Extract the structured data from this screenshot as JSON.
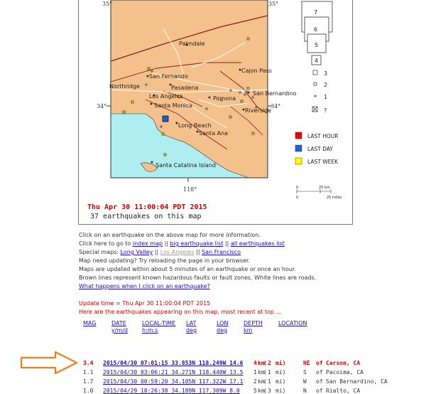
{
  "map": {
    "lat_top_left": "35°",
    "lat_top_right": "35°",
    "lat_mid_left": "34°",
    "lat_mid_right": "34°",
    "lon_bottom": "118°",
    "places": [
      "Palmdale",
      "San Fernando",
      "Northridge",
      "Pasadena",
      "Cajon Pass",
      "Los Angeles",
      "Pomona",
      "San Bernardino",
      "Santa Monica",
      "Riverside",
      "Long Beach",
      "Santa Ana",
      "Santa Catalina Island"
    ],
    "colors": {
      "land": "#f4c08c",
      "water": "#aeeef0",
      "fault": "#8b1a1a",
      "road": "#ffffff"
    }
  },
  "legend": {
    "boxes": [
      "7",
      "6",
      "5",
      "4"
    ],
    "mags": [
      "3",
      "2",
      "1",
      "?"
    ],
    "last_hour": "LAST HOUR",
    "last_day": "LAST DAY",
    "last_week": "LAST WEEK",
    "scale_km_0": "0",
    "scale_km_25": "25 km",
    "scale_mi_0": "0",
    "scale_mi_25": "25 miles"
  },
  "caption": {
    "time": "Thu Apr 30 11:00:04 PDT 2015",
    "count": "37 earthquakes on this map"
  },
  "info": {
    "line1": "Click on an earthquake on the above map for more information.",
    "line2_pre": "Click here to go to ",
    "index_map": "index map",
    "sep1": " || ",
    "big_list": "big earthquake list",
    "sep2": " || ",
    "all_list": "all earthquakes list",
    "special_pre": "Special maps: ",
    "long_valley": "Long Valley",
    "sep3": " || ",
    "los_angeles": "Los Angeles",
    "sep4": " || ",
    "san_francisco": "San Francisco",
    "line4": "Map need updating? Try reloading the page in your browser.",
    "line5": "Maps are updated within about 5 minutes of an earthquake or once an hour.",
    "line6": "Brown lines represent known hazardous faults or fault zones. White lines are roads.",
    "what_happens": "What happens when I click on an earthquake?",
    "update_time": "Update time = Thu Apr 30 11:00:04 PDT 2015",
    "here_are": "Here are the earthquakes appearing on this map, most recent at top ..."
  },
  "headers": [
    {
      "top": "MAG",
      "bottom": ""
    },
    {
      "top": "DATE",
      "bottom": "y/m/d"
    },
    {
      "top": "LOCAL-TIME",
      "bottom": "h:m:s"
    },
    {
      "top": "LAT",
      "bottom": "deg"
    },
    {
      "top": "LON",
      "bottom": "deg"
    },
    {
      "top": "DEPTH",
      "bottom": "km"
    },
    {
      "top": "LOCATION",
      "bottom": ""
    }
  ],
  "quakes": [
    {
      "mag": "3.4",
      "link": "2015/04/30 07:01:15 33.853N 118.249W 14.6",
      "km": "4",
      "mi": "2",
      "dir": "NE",
      "place": "Carson, CA"
    },
    {
      "mag": "1.1",
      "link": "2015/04/30 03:06:21 34.271N 118.440W 13.5",
      "km": "1",
      "mi": "1",
      "dir": "S",
      "place": "Pacoima, CA"
    },
    {
      "mag": "1.7",
      "link": "2015/04/30 00:59:20 34.105N 117.322W 17.1",
      "km": "2",
      "mi": "1",
      "dir": "W",
      "place": "San Bernardino, CA"
    },
    {
      "mag": "1.0",
      "link": "2015/04/29 18:26:38 34.189N 117.309W 8.0",
      "km": "5",
      "mi": "3",
      "dir": "N",
      "place": "Rialto, CA"
    }
  ]
}
